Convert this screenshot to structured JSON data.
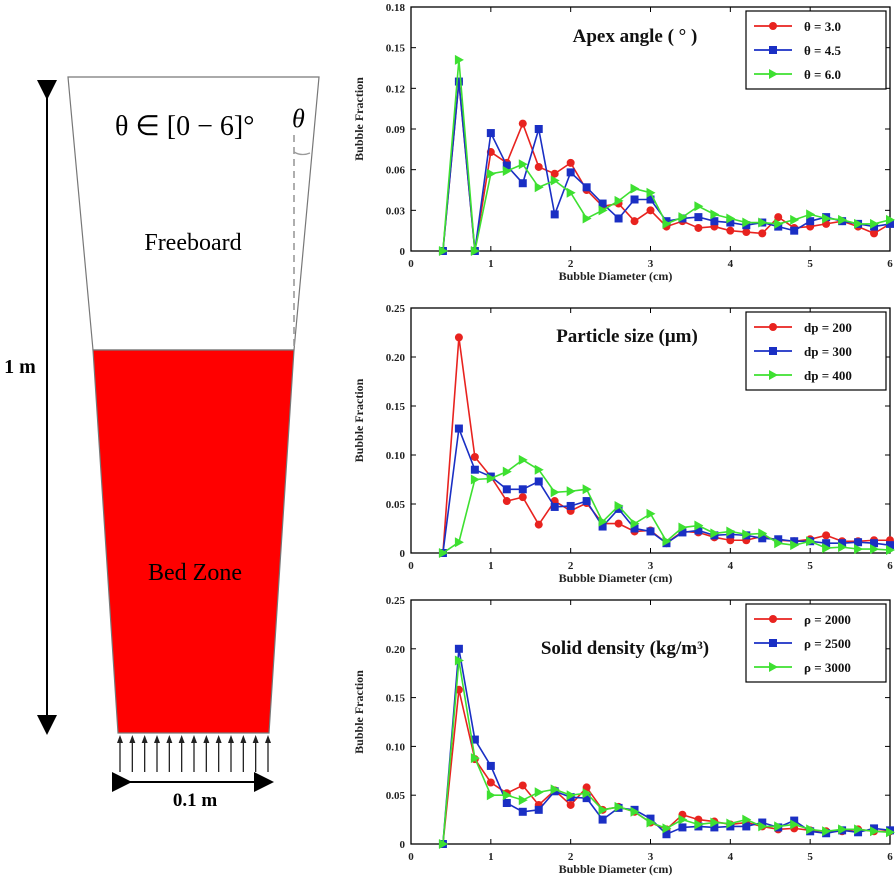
{
  "diagram": {
    "height_label": "1 m",
    "width_label": "0.1 m",
    "freeboard_label": "Freeboard",
    "bed_label": "Bed Zone",
    "angle_range_label": "θ ∈ [0 − 6]°",
    "angle_symbol": "θ",
    "bed_color": "#ff0000"
  },
  "chart_data": [
    {
      "type": "line",
      "title": "Apex angle ( ° )",
      "xlabel": "Bubble Diameter (cm)",
      "ylabel": "Bubble Fraction",
      "xlim": [
        0,
        6
      ],
      "ylim": [
        0,
        0.18
      ],
      "yticks": [
        "0",
        "0.03",
        "0.06",
        "0.09",
        "0.12",
        "0.15",
        "0.18"
      ],
      "xticks": [
        "0",
        "1",
        "2",
        "3",
        "4",
        "5",
        "6"
      ],
      "legend_position": "top-right",
      "x": [
        0.4,
        0.6,
        0.8,
        1.0,
        1.2,
        1.4,
        1.6,
        1.8,
        2.0,
        2.2,
        2.4,
        2.6,
        2.8,
        3.0,
        3.2,
        3.4,
        3.6,
        3.8,
        4.0,
        4.2,
        4.4,
        4.6,
        4.8,
        5.0,
        5.2,
        5.4,
        5.6,
        5.8,
        6.0
      ],
      "series": [
        {
          "name": "θ = 3.0",
          "color": "#e8231f",
          "marker": "circle",
          "values": [
            0.0,
            0.125,
            0.0,
            0.073,
            0.065,
            0.094,
            0.062,
            0.057,
            0.065,
            0.045,
            0.033,
            0.035,
            0.022,
            0.03,
            0.018,
            0.022,
            0.017,
            0.018,
            0.015,
            0.014,
            0.013,
            0.025,
            0.017,
            0.018,
            0.02,
            0.022,
            0.018,
            0.013,
            0.02
          ]
        },
        {
          "name": "θ = 4.5",
          "color": "#1a2fc4",
          "marker": "square",
          "values": [
            0.0,
            0.125,
            0.0,
            0.087,
            0.063,
            0.05,
            0.09,
            0.027,
            0.058,
            0.047,
            0.035,
            0.024,
            0.038,
            0.038,
            0.022,
            0.024,
            0.025,
            0.022,
            0.021,
            0.019,
            0.021,
            0.018,
            0.015,
            0.022,
            0.025,
            0.022,
            0.02,
            0.018,
            0.02
          ]
        },
        {
          "name": "θ = 6.0",
          "color": "#3ee031",
          "marker": "triangle",
          "values": [
            0.0,
            0.141,
            0.0,
            0.057,
            0.059,
            0.064,
            0.047,
            0.052,
            0.043,
            0.024,
            0.03,
            0.037,
            0.046,
            0.043,
            0.02,
            0.025,
            0.033,
            0.027,
            0.024,
            0.021,
            0.021,
            0.02,
            0.023,
            0.027,
            0.024,
            0.023,
            0.02,
            0.02,
            0.023
          ]
        }
      ]
    },
    {
      "type": "line",
      "title": "Particle size (μm)",
      "xlabel": "Bubble Diameter (cm)",
      "ylabel": "Bubble Fraction",
      "xlim": [
        0,
        6
      ],
      "ylim": [
        0,
        0.25
      ],
      "yticks": [
        "0",
        "0.05",
        "0.10",
        "0.15",
        "0.20",
        "0.25"
      ],
      "xticks": [
        "0",
        "1",
        "2",
        "3",
        "4",
        "5",
        "6"
      ],
      "legend_position": "top-right",
      "x": [
        0.4,
        0.6,
        0.8,
        1.0,
        1.2,
        1.4,
        1.6,
        1.8,
        2.0,
        2.2,
        2.4,
        2.6,
        2.8,
        3.0,
        3.2,
        3.4,
        3.6,
        3.8,
        4.0,
        4.2,
        4.4,
        4.6,
        4.8,
        5.0,
        5.2,
        5.4,
        5.6,
        5.8,
        6.0
      ],
      "series": [
        {
          "name": "d_p = 200",
          "color": "#e8231f",
          "marker": "circle",
          "values": [
            0.0,
            0.22,
            0.098,
            0.078,
            0.053,
            0.057,
            0.029,
            0.053,
            0.043,
            0.051,
            0.03,
            0.03,
            0.022,
            0.023,
            0.01,
            0.022,
            0.021,
            0.016,
            0.013,
            0.013,
            0.017,
            0.013,
            0.012,
            0.014,
            0.018,
            0.012,
            0.012,
            0.013,
            0.013
          ]
        },
        {
          "name": "d_p = 300",
          "color": "#1a2fc4",
          "marker": "square",
          "values": [
            0.0,
            0.127,
            0.085,
            0.078,
            0.065,
            0.065,
            0.073,
            0.047,
            0.048,
            0.053,
            0.027,
            0.045,
            0.025,
            0.022,
            0.01,
            0.021,
            0.023,
            0.018,
            0.019,
            0.018,
            0.015,
            0.014,
            0.012,
            0.012,
            0.01,
            0.01,
            0.011,
            0.01,
            0.008
          ]
        },
        {
          "name": "d_p = 400",
          "color": "#3ee031",
          "marker": "triangle",
          "values": [
            0.0,
            0.011,
            0.075,
            0.076,
            0.083,
            0.095,
            0.085,
            0.062,
            0.063,
            0.065,
            0.032,
            0.048,
            0.03,
            0.04,
            0.012,
            0.026,
            0.028,
            0.02,
            0.022,
            0.019,
            0.02,
            0.01,
            0.008,
            0.012,
            0.005,
            0.006,
            0.004,
            0.004,
            0.003
          ]
        }
      ]
    },
    {
      "type": "line",
      "title": "Solid density (kg/m³)",
      "xlabel": "Bubble Diameter (cm)",
      "ylabel": "Bubble Fraction",
      "xlim": [
        0,
        6
      ],
      "ylim": [
        0,
        0.25
      ],
      "yticks": [
        "0",
        "0.05",
        "0.10",
        "0.15",
        "0.20",
        "0.25"
      ],
      "xticks": [
        "0",
        "1",
        "2",
        "3",
        "4",
        "5",
        "6"
      ],
      "legend_position": "top-right",
      "x": [
        0.4,
        0.6,
        0.8,
        1.0,
        1.2,
        1.4,
        1.6,
        1.8,
        2.0,
        2.2,
        2.4,
        2.6,
        2.8,
        3.0,
        3.2,
        3.4,
        3.6,
        3.8,
        4.0,
        4.2,
        4.4,
        4.6,
        4.8,
        5.0,
        5.2,
        5.4,
        5.6,
        5.8,
        6.0
      ],
      "series": [
        {
          "name": "ρ = 2000",
          "color": "#e8231f",
          "marker": "circle",
          "values": [
            0.0,
            0.158,
            0.087,
            0.063,
            0.052,
            0.06,
            0.04,
            0.055,
            0.04,
            0.058,
            0.035,
            0.038,
            0.033,
            0.022,
            0.015,
            0.03,
            0.025,
            0.023,
            0.02,
            0.022,
            0.018,
            0.015,
            0.016,
            0.014,
            0.013,
            0.013,
            0.015,
            0.013,
            0.013
          ]
        },
        {
          "name": "ρ = 2500",
          "color": "#1a2fc4",
          "marker": "square",
          "values": [
            0.0,
            0.2,
            0.107,
            0.08,
            0.042,
            0.033,
            0.035,
            0.054,
            0.048,
            0.047,
            0.025,
            0.037,
            0.035,
            0.026,
            0.01,
            0.017,
            0.018,
            0.017,
            0.018,
            0.018,
            0.022,
            0.017,
            0.024,
            0.013,
            0.011,
            0.014,
            0.012,
            0.016,
            0.014
          ]
        },
        {
          "name": "ρ = 3000",
          "color": "#3ee031",
          "marker": "triangle",
          "values": [
            0.0,
            0.188,
            0.088,
            0.05,
            0.05,
            0.045,
            0.053,
            0.056,
            0.05,
            0.052,
            0.035,
            0.038,
            0.033,
            0.022,
            0.016,
            0.025,
            0.02,
            0.022,
            0.021,
            0.025,
            0.018,
            0.018,
            0.02,
            0.015,
            0.013,
            0.015,
            0.015,
            0.013,
            0.012
          ]
        }
      ]
    }
  ]
}
